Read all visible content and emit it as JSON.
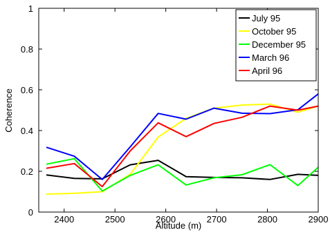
{
  "chart_data": {
    "type": "line",
    "title": "",
    "xlabel": "Altitude (m)",
    "ylabel": "Coherence",
    "xlim": [
      2350,
      2900
    ],
    "ylim": [
      0,
      1
    ],
    "xticks": [
      2400,
      2500,
      2600,
      2700,
      2800,
      2900
    ],
    "yticks": [
      0,
      0.2,
      0.4,
      0.6,
      0.8,
      1
    ],
    "xtick_labels": [
      "2400",
      "2500",
      "2600",
      "2700",
      "2800",
      "2900"
    ],
    "ytick_labels": [
      "0",
      "0.2",
      "0.4",
      "0.6",
      "0.8",
      "1"
    ],
    "grid": false,
    "legend_position": "top-right",
    "series": [
      {
        "name": "July 95",
        "color": "#000000",
        "x": [
          2365,
          2420,
          2475,
          2530,
          2585,
          2640,
          2695,
          2750,
          2805,
          2860,
          2900
        ],
        "y": [
          0.182,
          0.165,
          0.163,
          0.232,
          0.254,
          0.174,
          0.17,
          0.168,
          0.16,
          0.185,
          0.18
        ]
      },
      {
        "name": "October 95",
        "color": "#ffff00",
        "x": [
          2365,
          2420,
          2475,
          2530,
          2585,
          2640,
          2695,
          2750,
          2805,
          2860,
          2900
        ],
        "y": [
          0.088,
          0.092,
          0.1,
          0.185,
          0.368,
          0.46,
          0.51,
          0.525,
          0.53,
          0.49,
          0.52
        ]
      },
      {
        "name": "December 95",
        "color": "#00ff00",
        "x": [
          2365,
          2420,
          2475,
          2530,
          2585,
          2640,
          2695,
          2750,
          2805,
          2860,
          2900
        ],
        "y": [
          0.235,
          0.262,
          0.103,
          0.18,
          0.232,
          0.133,
          0.168,
          0.183,
          0.233,
          0.13,
          0.22
        ]
      },
      {
        "name": "March 96",
        "color": "#0000ff",
        "x": [
          2365,
          2420,
          2475,
          2530,
          2585,
          2640,
          2695,
          2750,
          2805,
          2860,
          2900
        ],
        "y": [
          0.318,
          0.274,
          0.16,
          0.32,
          0.484,
          0.456,
          0.51,
          0.485,
          0.483,
          0.502,
          0.58
        ]
      },
      {
        "name": "April 96",
        "color": "#ff0000",
        "x": [
          2365,
          2420,
          2475,
          2530,
          2585,
          2640,
          2695,
          2750,
          2805,
          2860,
          2900
        ],
        "y": [
          0.215,
          0.238,
          0.125,
          0.3,
          0.438,
          0.37,
          0.435,
          0.465,
          0.52,
          0.5,
          0.52
        ]
      }
    ]
  }
}
